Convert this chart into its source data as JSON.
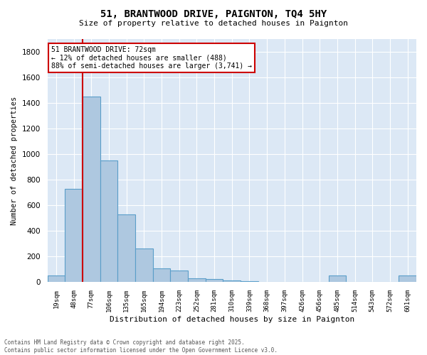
{
  "title": "51, BRANTWOOD DRIVE, PAIGNTON, TQ4 5HY",
  "subtitle": "Size of property relative to detached houses in Paignton",
  "xlabel": "Distribution of detached houses by size in Paignton",
  "ylabel": "Number of detached properties",
  "footer_line1": "Contains HM Land Registry data © Crown copyright and database right 2025.",
  "footer_line2": "Contains public sector information licensed under the Open Government Licence v3.0.",
  "bar_labels": [
    "19sqm",
    "48sqm",
    "77sqm",
    "106sqm",
    "135sqm",
    "165sqm",
    "194sqm",
    "223sqm",
    "252sqm",
    "281sqm",
    "310sqm",
    "339sqm",
    "368sqm",
    "397sqm",
    "426sqm",
    "456sqm",
    "485sqm",
    "514sqm",
    "543sqm",
    "572sqm",
    "601sqm"
  ],
  "bar_values": [
    50,
    730,
    1450,
    950,
    530,
    265,
    110,
    90,
    30,
    25,
    15,
    10,
    5,
    5,
    5,
    0,
    50,
    0,
    0,
    0,
    50
  ],
  "bar_color": "#aec8e0",
  "bar_edge_color": "#5a9ec9",
  "background_color": "#dce8f5",
  "grid_color": "#ffffff",
  "red_line_x": 1.5,
  "annotation_line1": "51 BRANTWOOD DRIVE: 72sqm",
  "annotation_line2": "← 12% of detached houses are smaller (488)",
  "annotation_line3": "88% of semi-detached houses are larger (3,741) →",
  "annotation_box_color": "#ffffff",
  "annotation_box_edge": "#cc0000",
  "ylim": [
    0,
    1900
  ],
  "yticks": [
    0,
    200,
    400,
    600,
    800,
    1000,
    1200,
    1400,
    1600,
    1800
  ],
  "fig_width": 6.0,
  "fig_height": 5.0,
  "dpi": 100
}
